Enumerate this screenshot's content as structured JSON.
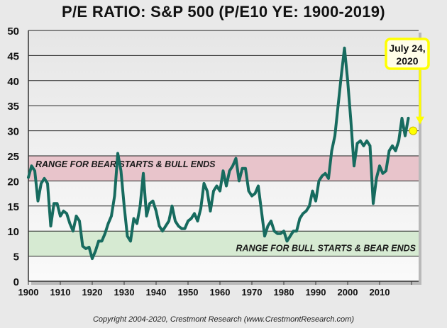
{
  "chart_data": {
    "type": "line",
    "title": "P/E RATIO: S&P 500 (P/E10 YE: 1900-2019)",
    "xlabel": "",
    "ylabel": "",
    "xlim": [
      1900,
      2020
    ],
    "ylim": [
      0,
      50
    ],
    "grid": true,
    "x_ticks": [
      "1900",
      "1910",
      "1920",
      "1930",
      "1940",
      "1950",
      "1960",
      "1970",
      "1980",
      "1990",
      "2000",
      "2010"
    ],
    "y_ticks": [
      "0",
      "5",
      "10",
      "15",
      "20",
      "25",
      "30",
      "35",
      "40",
      "45",
      "50"
    ],
    "bands": [
      {
        "label": "RANGE FOR BEAR STARTS & BULL ENDS",
        "from": 20,
        "to": 25,
        "color": "#e8c4cb"
      },
      {
        "label": "RANGE FOR BULL STARTS & BEAR ENDS",
        "from": 5,
        "to": 10,
        "color": "#d6ead2"
      }
    ],
    "series": [
      {
        "name": "P/E10",
        "color": "#176b5f",
        "x": [
          1900,
          1901,
          1902,
          1903,
          1904,
          1905,
          1906,
          1907,
          1908,
          1909,
          1910,
          1911,
          1912,
          1913,
          1914,
          1915,
          1916,
          1917,
          1918,
          1919,
          1920,
          1921,
          1922,
          1923,
          1924,
          1925,
          1926,
          1927,
          1928,
          1929,
          1930,
          1931,
          1932,
          1933,
          1934,
          1935,
          1936,
          1937,
          1938,
          1939,
          1940,
          1941,
          1942,
          1943,
          1944,
          1945,
          1946,
          1947,
          1948,
          1949,
          1950,
          1951,
          1952,
          1953,
          1954,
          1955,
          1956,
          1957,
          1958,
          1959,
          1960,
          1961,
          1962,
          1963,
          1964,
          1965,
          1966,
          1967,
          1968,
          1969,
          1970,
          1971,
          1972,
          1973,
          1974,
          1975,
          1976,
          1977,
          1978,
          1979,
          1980,
          1981,
          1982,
          1983,
          1984,
          1985,
          1986,
          1987,
          1988,
          1989,
          1990,
          1991,
          1992,
          1993,
          1994,
          1995,
          1996,
          1997,
          1998,
          1999,
          2000,
          2001,
          2002,
          2003,
          2004,
          2005,
          2006,
          2007,
          2008,
          2009,
          2010,
          2011,
          2012,
          2013,
          2014,
          2015,
          2016,
          2017,
          2018,
          2019
        ],
        "values": [
          20.7,
          23,
          22,
          16,
          19.5,
          20.5,
          19.5,
          11,
          15.5,
          15.5,
          13,
          14,
          13.5,
          11.5,
          10,
          13,
          12,
          7,
          6.5,
          6.8,
          4.5,
          6,
          8,
          8,
          9.5,
          11.5,
          13,
          17,
          25.5,
          22,
          15,
          9,
          8,
          12.5,
          11.5,
          15,
          21.5,
          13,
          15.5,
          16,
          14,
          11,
          10,
          11,
          12,
          15,
          12,
          11,
          10.5,
          10.5,
          12,
          12.5,
          13.5,
          12,
          14.5,
          19.5,
          18,
          14,
          18,
          19,
          18,
          22,
          19,
          22,
          23,
          24.5,
          20,
          22.5,
          22.5,
          18,
          17,
          17.5,
          19,
          14,
          9,
          11,
          12,
          10,
          9.5,
          9.5,
          10,
          8,
          9,
          10,
          10,
          12.5,
          13.5,
          14,
          15,
          18,
          16,
          20,
          21,
          21.5,
          20.5,
          26,
          29,
          35,
          41,
          46.5,
          40,
          32,
          23,
          27.5,
          28,
          27,
          28,
          27,
          15.5,
          20.5,
          23,
          21.5,
          22,
          26,
          27,
          26,
          28,
          32.5,
          29,
          32.5
        ]
      }
    ],
    "annotation": {
      "text_line1": "July 24,",
      "text_line2": "2020",
      "x": 2020.5,
      "value": 30,
      "color": "#ffff00"
    }
  },
  "footer": "Copyright 2004-2020, Crestmont Research (www.CrestmontResearch.com)"
}
